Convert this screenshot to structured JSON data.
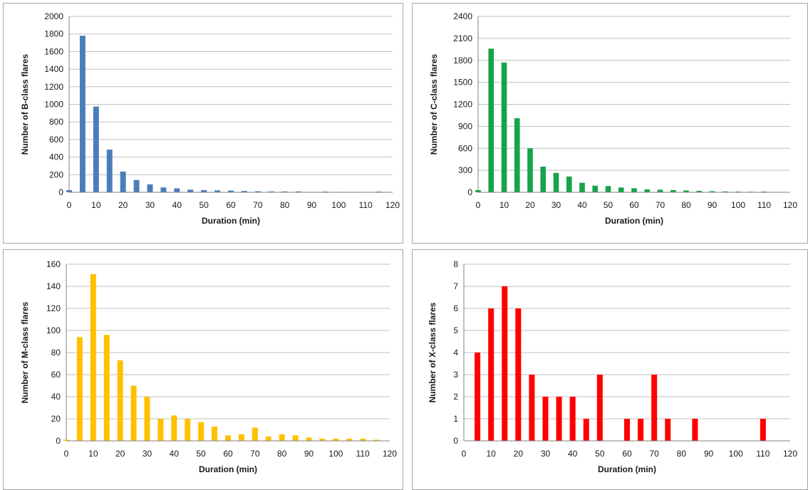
{
  "chart_data": [
    {
      "type": "bar",
      "xlabel": "Duration (min)",
      "ylabel": "Number of B-class flares",
      "color": "#4a7ebb",
      "xlim": [
        0,
        120
      ],
      "xticks": [
        0,
        10,
        20,
        30,
        40,
        50,
        60,
        70,
        80,
        90,
        100,
        110,
        120
      ],
      "ylim": [
        0,
        2000
      ],
      "yticks": [
        0,
        200,
        400,
        600,
        800,
        1000,
        1200,
        1400,
        1600,
        1800,
        2000
      ],
      "grid": true,
      "x": [
        0,
        5,
        10,
        15,
        20,
        25,
        30,
        35,
        40,
        45,
        50,
        55,
        60,
        65,
        70,
        75,
        80,
        85,
        90,
        95,
        100,
        105,
        110,
        115
      ],
      "values": [
        25,
        1780,
        975,
        485,
        235,
        140,
        90,
        55,
        45,
        30,
        25,
        22,
        20,
        15,
        12,
        10,
        10,
        10,
        5,
        8,
        5,
        5,
        3,
        8
      ]
    },
    {
      "type": "bar",
      "xlabel": "Duration (min)",
      "ylabel": "Number of C-class flares",
      "color": "#17a34a",
      "xlim": [
        0,
        120
      ],
      "xticks": [
        0,
        10,
        20,
        30,
        40,
        50,
        60,
        70,
        80,
        90,
        100,
        110,
        120
      ],
      "ylim": [
        0,
        2400
      ],
      "yticks": [
        0,
        300,
        600,
        900,
        1200,
        1500,
        1800,
        2100,
        2400
      ],
      "grid": true,
      "x": [
        0,
        5,
        10,
        15,
        20,
        25,
        30,
        35,
        40,
        45,
        50,
        55,
        60,
        65,
        70,
        75,
        80,
        85,
        90,
        95,
        100,
        105,
        110
      ],
      "values": [
        30,
        1960,
        1770,
        1010,
        600,
        350,
        265,
        215,
        130,
        90,
        85,
        65,
        55,
        40,
        35,
        30,
        25,
        20,
        15,
        12,
        10,
        8,
        10
      ]
    },
    {
      "type": "bar",
      "xlabel": "Duration (min)",
      "ylabel": "Number of M-class flares",
      "color": "#ffc000",
      "xlim": [
        0,
        120
      ],
      "xticks": [
        0,
        10,
        20,
        30,
        40,
        50,
        60,
        70,
        80,
        90,
        100,
        110,
        120
      ],
      "ylim": [
        0,
        160
      ],
      "yticks": [
        0,
        20,
        40,
        60,
        80,
        100,
        120,
        140,
        160
      ],
      "grid": true,
      "x": [
        0,
        5,
        10,
        15,
        20,
        25,
        30,
        35,
        40,
        45,
        50,
        55,
        60,
        65,
        70,
        75,
        80,
        85,
        90,
        95,
        100,
        105,
        110,
        115
      ],
      "values": [
        1,
        94,
        151,
        96,
        73,
        50,
        40,
        20,
        23,
        20,
        17,
        13,
        5,
        6,
        12,
        4,
        6,
        5,
        3,
        2,
        2,
        2,
        2,
        1
      ]
    },
    {
      "type": "bar",
      "xlabel": "Duration (min)",
      "ylabel": "Number of X-class flares",
      "color": "#ff0000",
      "xlim": [
        0,
        120
      ],
      "xticks": [
        0,
        10,
        20,
        30,
        40,
        50,
        60,
        70,
        80,
        90,
        100,
        110,
        120
      ],
      "ylim": [
        0,
        8
      ],
      "yticks": [
        0,
        1,
        2,
        3,
        4,
        5,
        6,
        7,
        8
      ],
      "grid": true,
      "x": [
        5,
        10,
        15,
        20,
        25,
        30,
        35,
        40,
        45,
        50,
        60,
        65,
        70,
        75,
        85,
        110
      ],
      "values": [
        4,
        6,
        7,
        6,
        3,
        2,
        2,
        2,
        1,
        3,
        1,
        1,
        3,
        1,
        1,
        1
      ]
    }
  ]
}
